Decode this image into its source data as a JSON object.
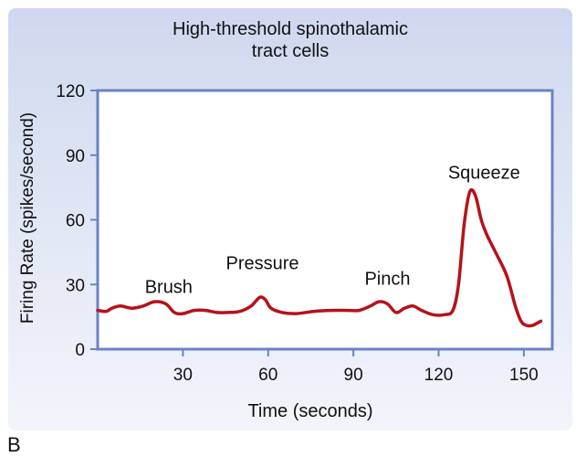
{
  "panel_letter": "B",
  "chart_data": {
    "type": "line",
    "title_lines": [
      "High-threshold spinothalamic",
      "tract cells"
    ],
    "xlabel": "Time (seconds)",
    "ylabel": "Firing Rate (spikes/second)",
    "xlim": [
      0,
      160
    ],
    "ylim": [
      0,
      120
    ],
    "xticks": [
      30,
      60,
      90,
      120,
      150
    ],
    "yticks": [
      0,
      30,
      60,
      90,
      120
    ],
    "grid": false,
    "colors": {
      "line": "#b5121b",
      "axes_frame": "#6b83c4",
      "plot_bg": "#ffffff"
    },
    "annotations": [
      {
        "text": "Brush",
        "x": 25,
        "y": 26
      },
      {
        "text": "Pressure",
        "x": 58,
        "y": 37
      },
      {
        "text": "Pinch",
        "x": 102,
        "y": 30
      },
      {
        "text": "Squeeze",
        "x": 136,
        "y": 79
      }
    ],
    "series": [
      {
        "x": [
          0,
          3,
          5,
          8,
          12,
          16,
          20,
          24,
          27,
          30,
          34,
          38,
          42,
          46,
          50,
          54,
          57,
          59,
          61,
          65,
          70,
          76,
          82,
          88,
          92,
          96,
          99,
          102,
          105,
          108,
          111,
          114,
          118,
          122,
          125,
          127,
          129,
          131,
          133,
          135,
          137,
          140,
          144,
          147,
          149,
          151,
          153,
          156
        ],
        "y": [
          18,
          17.5,
          19,
          20,
          19,
          20,
          22,
          21,
          17,
          16.5,
          18,
          18,
          17,
          17,
          17.5,
          20,
          24,
          23,
          19,
          17,
          16.5,
          17.5,
          18,
          18,
          18,
          20,
          22,
          21,
          17,
          19,
          20,
          18,
          16,
          16,
          18,
          30,
          58,
          73,
          71,
          60,
          53,
          45,
          34,
          20,
          13,
          11,
          11,
          13
        ]
      }
    ]
  }
}
